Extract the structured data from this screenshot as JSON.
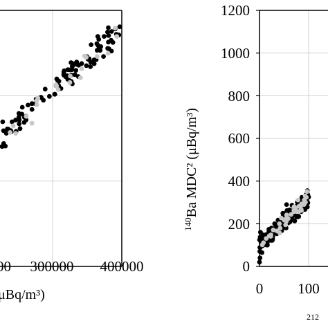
{
  "chart_data": [
    {
      "type": "scatter",
      "xlabel_visible": "μBq/m³)",
      "x_tick_labels": [
        "00",
        "300000",
        "400000"
      ],
      "xlim": [
        150000,
        400000
      ],
      "ylim": [
        0,
        1200
      ],
      "grid": true,
      "series": [
        {
          "color": "#000000",
          "x": [],
          "y": []
        },
        {
          "color": "#c8c8c8",
          "x": [],
          "y": []
        }
      ],
      "trend": {
        "slope": 0.002875,
        "intercept": -40
      }
    },
    {
      "type": "scatter",
      "ylabel_sup": "140",
      "ylabel": "Ba MDC² (μBq/m³)",
      "y_tick_labels": [
        "0",
        "200",
        "400",
        "600",
        "800",
        "1000",
        "1200"
      ],
      "x_tick_labels": [
        "0",
        "100"
      ],
      "x_sub_label": "212",
      "ylim": [
        0,
        1200
      ],
      "xlim": [
        0,
        100
      ],
      "grid": true,
      "series": [
        {
          "color": "#000000",
          "x": [],
          "y": []
        },
        {
          "color": "#c8c8c8",
          "x": [],
          "y": []
        }
      ],
      "trend": {
        "slope": 2.2,
        "intercept": 100
      }
    }
  ]
}
